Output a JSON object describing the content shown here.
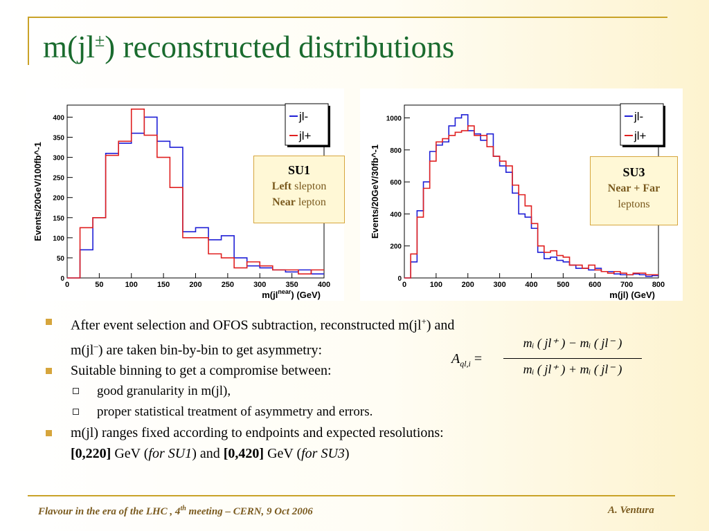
{
  "slide": {
    "title_main": "m(jl",
    "title_sup": "±",
    "title_rest": ") reconstructed distributions"
  },
  "su1_box": {
    "title": "SU1",
    "line1_bold": "Left",
    "line1_rest": " slepton",
    "line2_bold": "Near",
    "line2_rest": " lepton"
  },
  "su3_box": {
    "title": "SU3",
    "line1_bold": "Near + Far",
    "line2": "leptons"
  },
  "chart_data": [
    {
      "type": "line",
      "step": true,
      "ylabel": "Events/20GeV/100fb^-1",
      "xlabel_main": "m(jl",
      "xlabel_sup": "near",
      "xlabel_tail": ")  (GeV)",
      "xlim": [
        0,
        400
      ],
      "ylim": [
        0,
        430
      ],
      "xticks": [
        0,
        50,
        100,
        150,
        200,
        250,
        300,
        350,
        400
      ],
      "yticks": [
        0,
        50,
        100,
        150,
        200,
        250,
        300,
        350,
        400
      ],
      "bin_edges": [
        0,
        20,
        40,
        60,
        80,
        100,
        120,
        140,
        160,
        180,
        200,
        220,
        240,
        260,
        280,
        300,
        320,
        340,
        360,
        380,
        400
      ],
      "series": [
        {
          "name": "jl-",
          "color": "#1f1fd6",
          "values": [
            0,
            70,
            150,
            310,
            335,
            360,
            400,
            340,
            325,
            115,
            125,
            95,
            105,
            50,
            30,
            25,
            20,
            15,
            20,
            10
          ]
        },
        {
          "name": "jl+",
          "color": "#e02020",
          "values": [
            0,
            125,
            150,
            305,
            340,
            420,
            355,
            300,
            225,
            100,
            100,
            60,
            50,
            25,
            40,
            30,
            20,
            20,
            10,
            20
          ]
        }
      ]
    },
    {
      "type": "line",
      "step": true,
      "ylabel": "Events/20GeV/30fb^-1",
      "xlabel_main": "m(jl)  (GeV)",
      "xlim": [
        0,
        800
      ],
      "ylim": [
        0,
        1080
      ],
      "xticks": [
        0,
        100,
        200,
        300,
        400,
        500,
        600,
        700,
        800
      ],
      "yticks": [
        0,
        200,
        400,
        600,
        800,
        1000
      ],
      "bin_edges": [
        0,
        20,
        40,
        60,
        80,
        100,
        120,
        140,
        160,
        180,
        200,
        220,
        240,
        260,
        280,
        300,
        320,
        340,
        360,
        380,
        400,
        420,
        440,
        460,
        480,
        500,
        520,
        540,
        560,
        580,
        600,
        620,
        640,
        660,
        680,
        700,
        720,
        740,
        760,
        780,
        800
      ],
      "series": [
        {
          "name": "jl-",
          "color": "#1f1fd6",
          "values": [
            0,
            100,
            420,
            600,
            790,
            830,
            850,
            950,
            1000,
            1020,
            920,
            900,
            860,
            900,
            760,
            700,
            660,
            530,
            400,
            380,
            310,
            160,
            120,
            130,
            110,
            100,
            80,
            60,
            60,
            50,
            60,
            40,
            40,
            25,
            20,
            20,
            25,
            20,
            10,
            15
          ]
        },
        {
          "name": "jl+",
          "color": "#e02020",
          "values": [
            0,
            150,
            380,
            560,
            730,
            850,
            870,
            890,
            910,
            920,
            950,
            890,
            890,
            820,
            760,
            730,
            700,
            580,
            520,
            450,
            340,
            200,
            160,
            170,
            140,
            130,
            80,
            80,
            60,
            80,
            50,
            40,
            30,
            40,
            30,
            20,
            30,
            30,
            20,
            20
          ]
        }
      ]
    }
  ],
  "bullets": {
    "b1_a": "After event selection and OFOS subtraction, reconstructed m(jl",
    "b1_a_sup": "+",
    "b1_b": ") and",
    "b1_c": "m(jl",
    "b1_c_sup": "–",
    "b1_d": ") are taken bin-by-bin to get asymmetry:",
    "b2": "Suitable binning to get a compromise between:",
    "b2_1": "good granularity in m(jl),",
    "b2_2": "proper statistical treatment of  asymmetry and errors.",
    "b3": "m(jl) ranges fixed according to endpoints and expected resolutions:",
    "b3_r1": "[0,220]",
    "b3_gev1": " GeV (",
    "b3_for1": "for SU1",
    "b3_and": ") and ",
    "b3_r2": "[0,420]",
    "b3_gev2": " GeV (",
    "b3_for2": "for SU3",
    "b3_end": ")"
  },
  "formula": {
    "lhs": "A",
    "lhs_sub": "ql,i",
    "num": "mᵢ ( jl⁺ ) − mᵢ ( jl⁻ )",
    "den": "mᵢ ( jl⁺ ) + mᵢ ( jl⁻ )"
  },
  "footer": {
    "left_a": "Flavour in the era of  the LHC , 4",
    "left_sup": "th",
    "left_b": " meeting   –   CERN, 9 Oct 2006",
    "right": "A. Ventura"
  }
}
